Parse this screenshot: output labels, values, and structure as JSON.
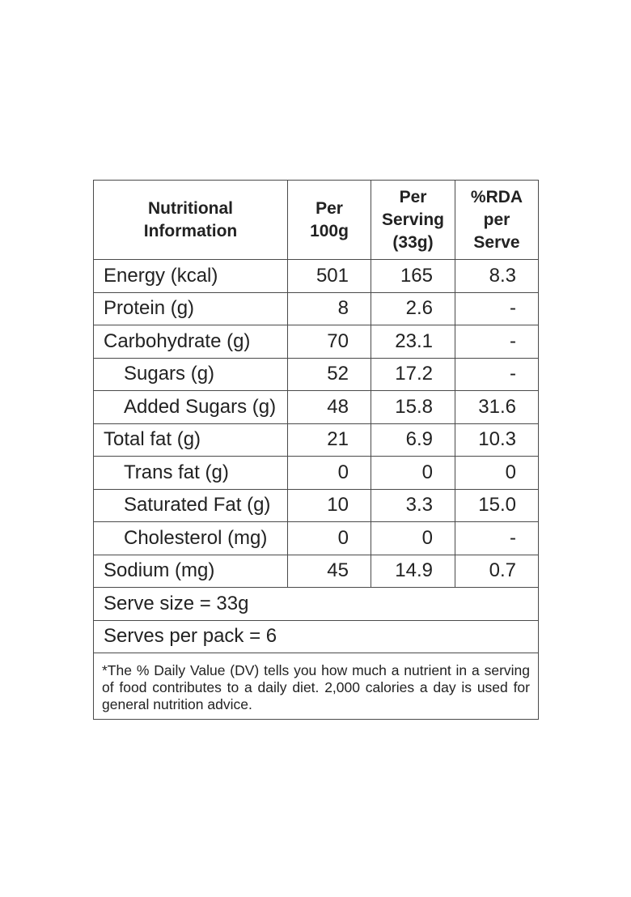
{
  "header": {
    "col1": [
      "Nutritional",
      "Information"
    ],
    "col2": [
      "Per",
      "100g"
    ],
    "col3": [
      "Per",
      "Serving",
      "(33g)"
    ],
    "col4": [
      "%RDA",
      "per",
      "Serve"
    ]
  },
  "rows": [
    {
      "name": "Energy (kcal)",
      "per100": "501",
      "perServing": "165",
      "rda": "8.3"
    },
    {
      "name": "Protein (g)",
      "per100": "8",
      "perServing": "2.6",
      "rda": "-"
    },
    {
      "name": "Carbohydrate (g)",
      "per100": "70",
      "perServing": "23.1",
      "rda": "-"
    },
    {
      "name": "Sugars (g)",
      "per100": "52",
      "perServing": "17.2",
      "rda": "-"
    },
    {
      "name": "Added Sugars (g)",
      "per100": "48",
      "perServing": "15.8",
      "rda": "31.6"
    },
    {
      "name": "Total fat (g)",
      "per100": "21",
      "perServing": "6.9",
      "rda": "10.3"
    },
    {
      "name": "Trans fat (g)",
      "per100": "0",
      "perServing": "0",
      "rda": "0"
    },
    {
      "name": "Saturated Fat (g)",
      "per100": "10",
      "perServing": "3.3",
      "rda": "15.0"
    },
    {
      "name": "Cholesterol (mg)",
      "per100": "0",
      "perServing": "0",
      "rda": "-"
    },
    {
      "name": "Sodium (mg)",
      "per100": "45",
      "perServing": "14.9",
      "rda": "0.7"
    }
  ],
  "serve_size": "Serve size = 33g",
  "serves_per_pack": "Serves per pack = 6",
  "footnote": "*The % Daily Value (DV) tells you how much a nutrient in a serving of food contributes to a daily diet. 2,000 calories a day is used for general nutrition advice."
}
